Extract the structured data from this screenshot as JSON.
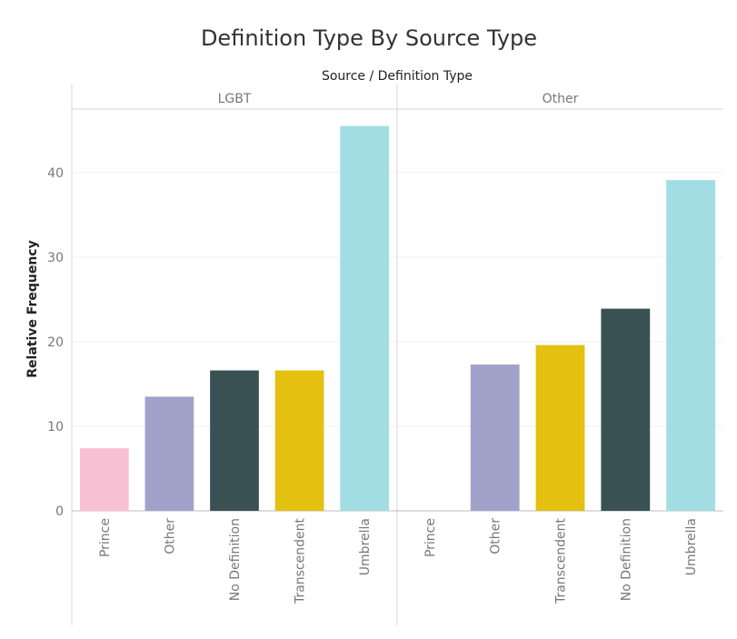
{
  "chart_data": {
    "type": "bar",
    "title": "Definition Type By Source Type",
    "header": "Source  /  Definition Type",
    "ylabel": "Relative Frequency",
    "ylim": [
      0,
      47.5
    ],
    "yticks": [
      0,
      10,
      20,
      30,
      40
    ],
    "grid": true,
    "panels": [
      {
        "name": "LGBT",
        "categories": [
          "Prince",
          "Other",
          "No Definition",
          "Transcendent",
          "Umbrella"
        ],
        "values": [
          7.4,
          13.5,
          16.6,
          16.6,
          45.5
        ],
        "colors": [
          "#f8c0d3",
          "#a0a2ca",
          "#3a5154",
          "#e4c010",
          "#a1dde3"
        ]
      },
      {
        "name": "Other",
        "categories": [
          "Prince",
          "Other",
          "Transcendent",
          "No Definition",
          "Umbrella"
        ],
        "values": [
          0,
          17.3,
          19.6,
          23.9,
          39.1
        ],
        "colors": [
          "#f8c0d3",
          "#a0a2ca",
          "#e4c010",
          "#3a5154",
          "#a1dde3"
        ]
      }
    ]
  }
}
